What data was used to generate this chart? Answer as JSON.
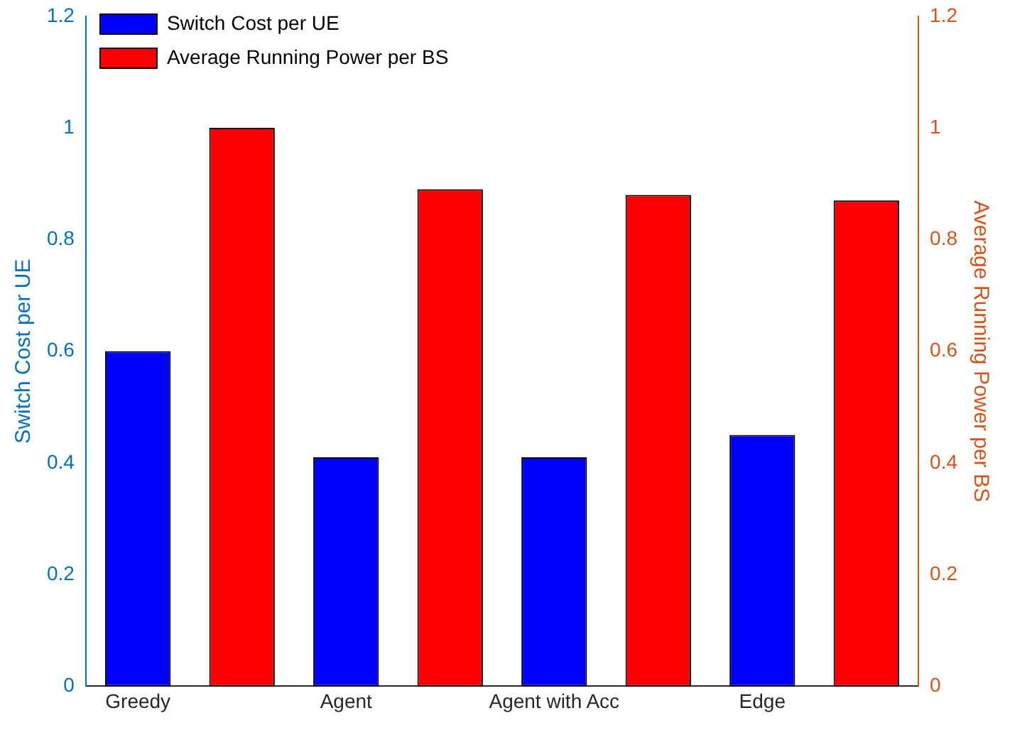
{
  "chart_data": {
    "type": "bar",
    "categories": [
      "Greedy",
      "Agent",
      "Agent with Acc",
      "Edge"
    ],
    "ylabel": "Switch Cost per UE",
    "y2label": "Average Running Power per BS",
    "series": [
      {
        "name": "Switch Cost per UE",
        "color": "#0000ff",
        "values": [
          0.6,
          0.41,
          0.41,
          0.45
        ]
      },
      {
        "name": "Average Running Power per BS",
        "color": "#ff0000",
        "values": [
          1.0,
          0.89,
          0.88,
          0.87
        ],
        "axis": "y2"
      }
    ],
    "ylim": [
      0,
      1.2
    ],
    "yticks": [
      0,
      0.2,
      0.4,
      0.6,
      0.8,
      1,
      1.2
    ],
    "y2lim": [
      0,
      1.2
    ],
    "y2ticks": [
      0,
      0.2,
      0.4,
      0.6,
      0.8,
      1,
      1.2
    ],
    "grid": false,
    "legend": "top left"
  }
}
